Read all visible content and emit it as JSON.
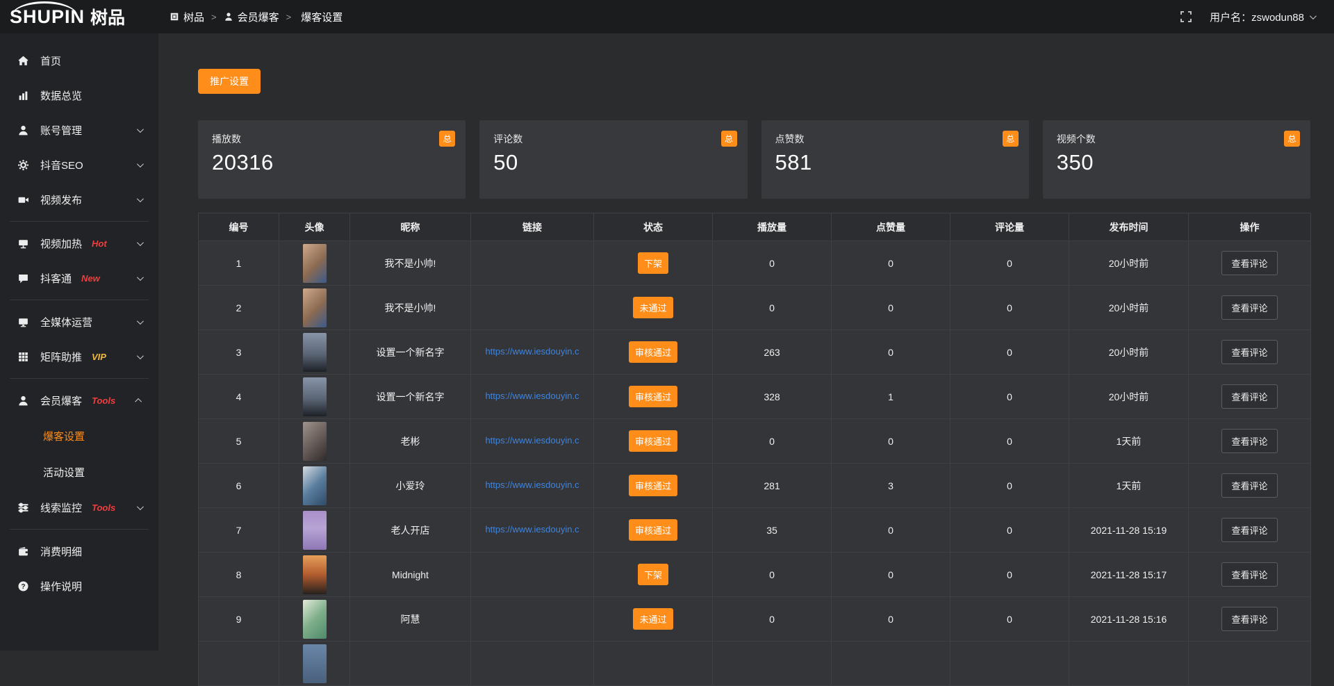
{
  "header": {
    "logo": {
      "text_en": "SHUPIN",
      "text_cn": "树品"
    },
    "breadcrumb": {
      "separator": ">",
      "items": [
        {
          "label": "树品"
        },
        {
          "label": "会员爆客"
        },
        {
          "label": "爆客设置"
        }
      ]
    },
    "user": {
      "label": "用户名：zswodun88"
    }
  },
  "colors": {
    "accent": "#ff8d1a",
    "link": "#3f85db",
    "hot_tag": "#f03e3e",
    "vip_tag": "#f0b840"
  },
  "sidebar": {
    "items": [
      {
        "label": "首页",
        "icon": "home",
        "tag": "",
        "chevron": "",
        "divider_after": false,
        "children": []
      },
      {
        "label": "数据总览",
        "icon": "chart",
        "tag": "",
        "chevron": "",
        "divider_after": false,
        "children": []
      },
      {
        "label": "账号管理",
        "icon": "user",
        "tag": "",
        "chevron": "down",
        "divider_after": false,
        "children": []
      },
      {
        "label": "抖音SEO",
        "icon": "gear",
        "tag": "",
        "chevron": "down",
        "divider_after": false,
        "children": []
      },
      {
        "label": "视频发布",
        "icon": "video",
        "tag": "",
        "chevron": "down",
        "divider_after": true,
        "children": []
      },
      {
        "label": "视频加热",
        "icon": "heat",
        "tag": "Hot",
        "tag_color": "#f03e3e",
        "chevron": "down",
        "divider_after": false,
        "children": []
      },
      {
        "label": "抖客通",
        "icon": "chat",
        "tag": "New",
        "tag_color": "#f03e3e",
        "chevron": "down",
        "divider_after": true,
        "children": []
      },
      {
        "label": "全媒体运营",
        "icon": "monitor",
        "tag": "",
        "chevron": "down",
        "divider_after": false,
        "children": []
      },
      {
        "label": "矩阵助推",
        "icon": "grid",
        "tag": "VIP",
        "tag_color": "#f0b840",
        "chevron": "down",
        "divider_after": true,
        "children": []
      },
      {
        "label": "会员爆客",
        "icon": "user",
        "tag": "Tools",
        "tag_color": "#f03e3e",
        "chevron": "up",
        "divider_after": false,
        "children": [
          {
            "label": "爆客设置",
            "active": true
          },
          {
            "label": "活动设置",
            "active": false
          }
        ]
      },
      {
        "label": "线索监控",
        "icon": "sliders",
        "tag": "Tools",
        "tag_color": "#f03e3e",
        "chevron": "down",
        "divider_after": true,
        "children": []
      },
      {
        "label": "消费明细",
        "icon": "wallet",
        "tag": "",
        "chevron": "",
        "divider_after": false,
        "children": []
      },
      {
        "label": "操作说明",
        "icon": "help",
        "tag": "",
        "chevron": "",
        "divider_after": false,
        "children": []
      }
    ]
  },
  "main": {
    "promo_button": "推广设置",
    "stat_badge": "总",
    "stats": [
      {
        "label": "播放数",
        "value": "20316"
      },
      {
        "label": "评论数",
        "value": "50"
      },
      {
        "label": "点赞数",
        "value": "581"
      },
      {
        "label": "视频个数",
        "value": "350"
      }
    ],
    "table": {
      "headers": [
        "编号",
        "头像",
        "昵称",
        "链接",
        "状态",
        "播放量",
        "点赞量",
        "评论量",
        "发布时间",
        "操作"
      ],
      "action_label": "查看评论",
      "rows": [
        {
          "no": "1",
          "avatar": "boy",
          "nick": "我不是小帅!",
          "link": "",
          "status": "下架",
          "plays": "0",
          "likes": "0",
          "comments": "0",
          "time": "20小时前"
        },
        {
          "no": "2",
          "avatar": "boy",
          "nick": "我不是小帅!",
          "link": "",
          "status": "未通过",
          "plays": "0",
          "likes": "0",
          "comments": "0",
          "time": "20小时前"
        },
        {
          "no": "3",
          "avatar": "city",
          "nick": "设置一个新名字",
          "link": "https://www.iesdouyin.c",
          "status": "审核通过",
          "plays": "263",
          "likes": "0",
          "comments": "0",
          "time": "20小时前"
        },
        {
          "no": "4",
          "avatar": "city",
          "nick": "设置一个新名字",
          "link": "https://www.iesdouyin.c",
          "status": "审核通过",
          "plays": "328",
          "likes": "1",
          "comments": "0",
          "time": "20小时前"
        },
        {
          "no": "5",
          "avatar": "face",
          "nick": "老彬",
          "link": "https://www.iesdouyin.c",
          "status": "审核通过",
          "plays": "0",
          "likes": "0",
          "comments": "0",
          "time": "1天前"
        },
        {
          "no": "6",
          "avatar": "blue",
          "nick": "小爱玲",
          "link": "https://www.iesdouyin.c",
          "status": "审核通过",
          "plays": "281",
          "likes": "3",
          "comments": "0",
          "time": "1天前"
        },
        {
          "no": "7",
          "avatar": "purple",
          "nick": "老人开店",
          "link": "https://www.iesdouyin.c",
          "status": "审核通过",
          "plays": "35",
          "likes": "0",
          "comments": "0",
          "time": "2021-11-28 15:19"
        },
        {
          "no": "8",
          "avatar": "sunset",
          "nick": "Midnight",
          "link": "",
          "status": "下架",
          "plays": "0",
          "likes": "0",
          "comments": "0",
          "time": "2021-11-28 15:17"
        },
        {
          "no": "9",
          "avatar": "green",
          "nick": "阿慧",
          "link": "",
          "status": "未通过",
          "plays": "0",
          "likes": "0",
          "comments": "0",
          "time": "2021-11-28 15:16"
        },
        {
          "no": "",
          "avatar": "partial",
          "nick": "",
          "link": "",
          "status": "",
          "plays": "",
          "likes": "",
          "comments": "",
          "time": ""
        }
      ]
    }
  }
}
